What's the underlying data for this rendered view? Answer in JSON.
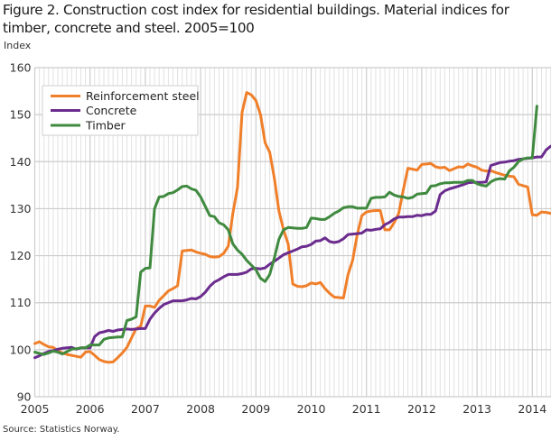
{
  "title": "Figure 2. Construction cost index for residential buildings. Material indices for timber, concrete and steel. 2005=100",
  "source": "Source: Statistics Norway.",
  "chart_data": {
    "type": "line",
    "title": "Figure 2. Construction cost index for residential buildings. Material indices for timber, concrete and steel. 2005=100",
    "xlabel": "",
    "ylabel": "Index",
    "ylim": [
      90,
      160
    ],
    "yticks": [
      90,
      100,
      110,
      120,
      130,
      140,
      150,
      160
    ],
    "xticks": [
      "2005",
      "2006",
      "2007",
      "2008",
      "2009",
      "2010",
      "2011",
      "2012",
      "2013",
      "2014"
    ],
    "x_start": "2005-01",
    "x_frequency": "monthly",
    "grid": true,
    "legend_position": "top-left",
    "series": [
      {
        "name": "Reinforcement steel",
        "color": "#f07f2a",
        "values": [
          101.3,
          101.7,
          101.1,
          100.6,
          100.5,
          99.8,
          99.3,
          99.0,
          98.8,
          98.6,
          98.4,
          99.5,
          99.6,
          98.8,
          97.9,
          97.5,
          97.3,
          97.4,
          98.3,
          99.3,
          100.5,
          102.5,
          104.5,
          105.0,
          109.3,
          109.3,
          109.0,
          110.5,
          111.5,
          112.5,
          113.0,
          113.6,
          121.0,
          121.1,
          121.2,
          120.8,
          120.5,
          120.3,
          119.8,
          119.7,
          119.8,
          120.5,
          122.0,
          129.0,
          134.5,
          150.5,
          154.7,
          154.2,
          153.0,
          150.0,
          144.0,
          142.0,
          136.5,
          129.5,
          125.5,
          122.5,
          114.0,
          113.5,
          113.4,
          113.6,
          114.2,
          114.0,
          114.3,
          113.0,
          112.0,
          111.2,
          111.1,
          111.0,
          116.0,
          119.0,
          124.5,
          128.5,
          129.3,
          129.5,
          129.6,
          129.6,
          125.5,
          125.5,
          127.0,
          129.0,
          134.0,
          138.6,
          138.4,
          138.2,
          139.4,
          139.5,
          139.6,
          138.9,
          138.7,
          138.8,
          138.1,
          138.5,
          138.9,
          138.8,
          139.5,
          139.1,
          138.8,
          138.2,
          138.0,
          138.1,
          137.7,
          137.4,
          137.1,
          136.9,
          136.8,
          135.2,
          134.9,
          134.6,
          128.7,
          128.6,
          129.3,
          129.2,
          129.0,
          128.6,
          129.2,
          129.6,
          129.9,
          130.2,
          132.3
        ]
      },
      {
        "name": "Concrete",
        "color": "#6b2c8e",
        "values": [
          98.3,
          98.7,
          99.2,
          99.6,
          99.8,
          100.1,
          100.3,
          100.4,
          100.5,
          100.1,
          100.4,
          100.4,
          100.4,
          102.8,
          103.6,
          103.8,
          104.1,
          103.9,
          104.2,
          104.3,
          104.4,
          104.3,
          104.4,
          104.5,
          104.5,
          106.5,
          107.8,
          108.8,
          109.6,
          110.0,
          110.4,
          110.4,
          110.4,
          110.6,
          110.9,
          110.8,
          111.3,
          112.2,
          113.5,
          114.4,
          114.9,
          115.5,
          116.0,
          116.0,
          116.0,
          116.2,
          116.5,
          117.2,
          117.3,
          117.2,
          117.4,
          118.2,
          118.8,
          119.5,
          120.2,
          120.6,
          121.0,
          121.4,
          121.9,
          122.0,
          122.4,
          123.1,
          123.2,
          123.8,
          123.0,
          122.8,
          123.0,
          123.6,
          124.5,
          124.6,
          124.7,
          124.8,
          125.5,
          125.4,
          125.6,
          125.7,
          126.6,
          127.1,
          127.8,
          128.2,
          128.2,
          128.3,
          128.3,
          128.6,
          128.5,
          128.8,
          128.8,
          129.5,
          133.0,
          133.8,
          134.2,
          134.5,
          134.8,
          135.1,
          135.5,
          135.6,
          135.6,
          135.6,
          135.7,
          139.2,
          139.5,
          139.8,
          139.9,
          140.1,
          140.2,
          140.5,
          140.6,
          140.7,
          140.8,
          141.0,
          141.0,
          142.5,
          143.3,
          143.4,
          144.4
        ]
      },
      {
        "name": "Timber",
        "color": "#3f8a3f",
        "values": [
          99.5,
          99.2,
          99.0,
          99.3,
          99.7,
          99.5,
          99.1,
          99.6,
          100.1,
          100.2,
          100.4,
          100.4,
          101.0,
          101.0,
          101.0,
          102.2,
          102.5,
          102.6,
          102.7,
          102.7,
          106.2,
          106.5,
          107.0,
          116.5,
          117.3,
          117.4,
          130.0,
          132.5,
          132.6,
          133.2,
          133.4,
          134.0,
          134.7,
          134.8,
          134.2,
          133.9,
          132.5,
          130.5,
          128.5,
          128.3,
          127.0,
          126.6,
          125.5,
          122.5,
          121.2,
          120.3,
          119.0,
          118.0,
          117.0,
          115.2,
          114.5,
          116.0,
          119.5,
          123.5,
          125.5,
          126.0,
          125.9,
          125.8,
          125.8,
          126.0,
          128.0,
          127.9,
          127.7,
          127.7,
          128.3,
          129.0,
          129.5,
          130.2,
          130.4,
          130.4,
          130.1,
          130.1,
          130.1,
          132.2,
          132.4,
          132.4,
          132.5,
          133.5,
          132.9,
          132.6,
          132.5,
          132.2,
          132.4,
          133.1,
          133.2,
          133.3,
          134.8,
          134.9,
          135.3,
          135.5,
          135.5,
          135.6,
          135.6,
          135.6,
          136.0,
          136.0,
          135.3,
          135.0,
          134.8,
          135.7,
          136.2,
          136.4,
          136.3,
          138.0,
          138.8,
          140.0,
          140.6,
          140.8,
          140.8,
          151.8
        ]
      }
    ]
  }
}
